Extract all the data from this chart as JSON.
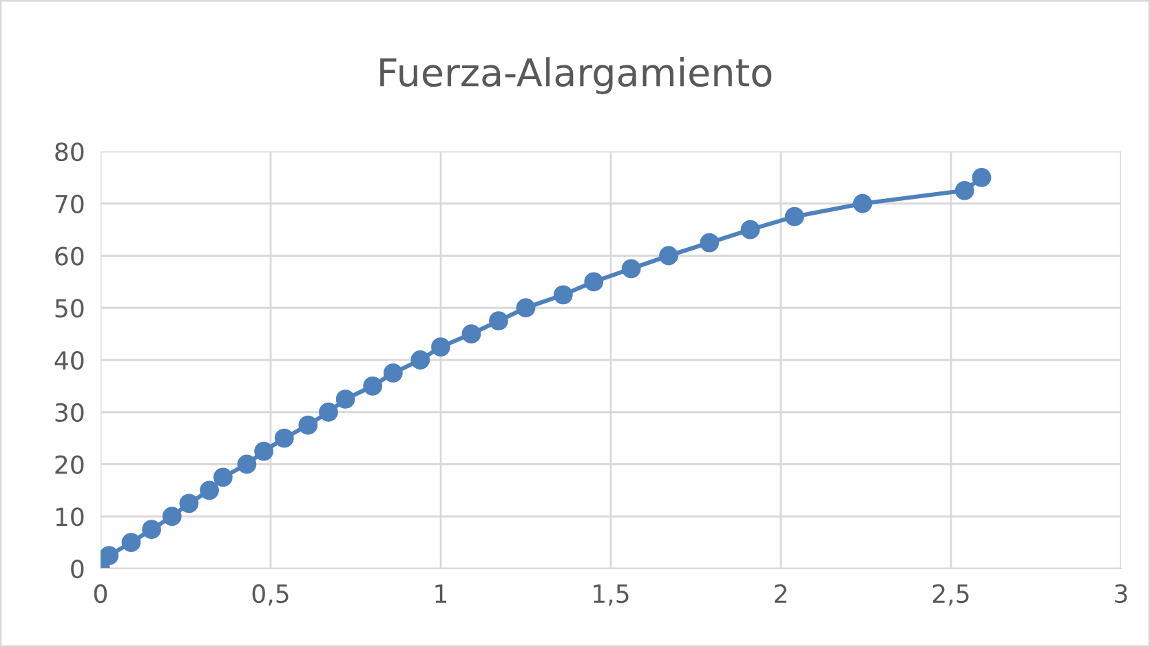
{
  "chart_data": {
    "type": "line",
    "title": "Fuerza-Alargamiento",
    "x": [
      0,
      0.025,
      0.09,
      0.15,
      0.21,
      0.26,
      0.32,
      0.36,
      0.43,
      0.48,
      0.54,
      0.61,
      0.67,
      0.72,
      0.8,
      0.86,
      0.94,
      1.0,
      1.09,
      1.17,
      1.25,
      1.36,
      1.45,
      1.56,
      1.67,
      1.79,
      1.91,
      2.04,
      2.24,
      2.54,
      2.59
    ],
    "series": [
      {
        "color": "#4f81bd",
        "values": [
          0,
          2.5,
          5,
          7.5,
          10,
          12.5,
          15,
          17.5,
          20,
          22.5,
          25,
          27.5,
          30,
          32.5,
          35,
          37.5,
          40,
          42.5,
          45,
          47.5,
          50,
          52.5,
          55,
          57.5,
          60,
          62.5,
          65,
          67.5,
          70,
          72.5,
          75
        ]
      }
    ],
    "xlim": [
      0,
      3
    ],
    "xticks": [
      0,
      {
        "value": 0.5,
        "label": "0,5"
      },
      1,
      {
        "value": 1.5,
        "label": "1,5"
      },
      2,
      {
        "value": 2.5,
        "label": "2,5"
      },
      3
    ],
    "ylim": [
      0,
      80
    ],
    "yticks": [
      0,
      10,
      20,
      30,
      40,
      50,
      60,
      70,
      80
    ],
    "grid": true,
    "marker": "circle",
    "line_style": "solid"
  }
}
